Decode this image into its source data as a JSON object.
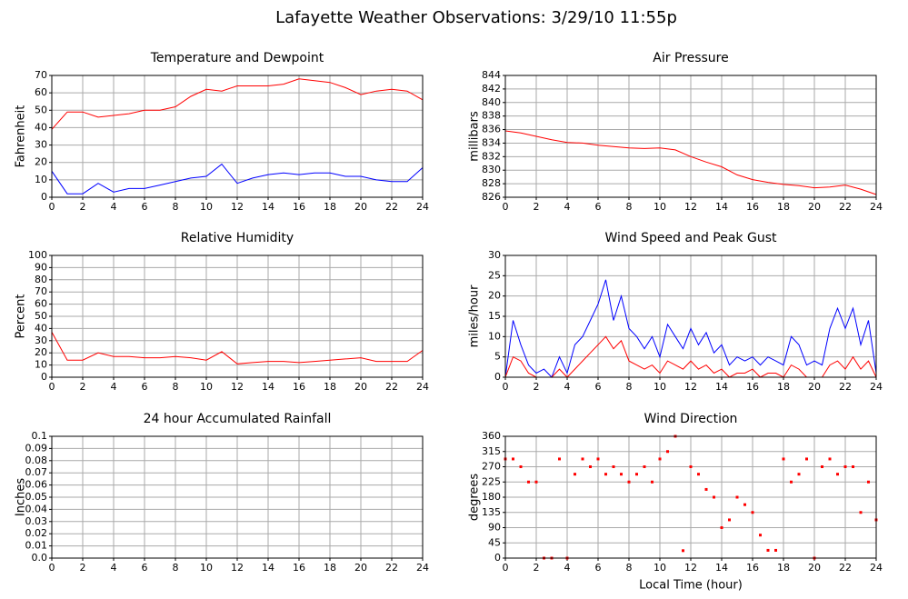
{
  "title": "Lafayette Weather Observations: 3/29/10 11:55p",
  "chart_data": [
    {
      "type": "line",
      "title": "Temperature and Dewpoint",
      "ylabel": "Fahrenheit",
      "x": [
        0,
        1,
        2,
        3,
        4,
        5,
        6,
        7,
        8,
        9,
        10,
        11,
        12,
        13,
        14,
        15,
        16,
        17,
        18,
        19,
        20,
        21,
        22,
        23,
        24
      ],
      "series": [
        {
          "color": "#ff0000",
          "values": [
            39,
            49,
            49,
            46,
            47,
            48,
            50,
            50,
            52,
            58,
            62,
            61,
            64,
            64,
            64,
            65,
            68,
            67,
            66,
            63,
            59,
            61,
            62,
            61,
            56
          ]
        },
        {
          "color": "#0000ff",
          "values": [
            15,
            2,
            2,
            8,
            3,
            5,
            5,
            7,
            9,
            11,
            12,
            19,
            8,
            11,
            13,
            14,
            13,
            14,
            14,
            12,
            12,
            10,
            9,
            9,
            17
          ]
        }
      ],
      "xlim": [
        0,
        24
      ],
      "xticks": [
        0,
        2,
        4,
        6,
        8,
        10,
        12,
        14,
        16,
        18,
        20,
        22,
        24
      ],
      "ylim": [
        0,
        70
      ],
      "yticks": [
        0,
        10,
        20,
        30,
        40,
        50,
        60,
        70
      ],
      "grid": true
    },
    {
      "type": "line",
      "title": "Air Pressure",
      "ylabel": "millibars",
      "x": [
        0,
        1,
        2,
        3,
        4,
        5,
        6,
        7,
        8,
        9,
        10,
        11,
        12,
        13,
        14,
        15,
        16,
        17,
        18,
        19,
        20,
        21,
        22,
        23,
        24
      ],
      "series": [
        {
          "color": "#ff0000",
          "values": [
            835.8,
            835.5,
            835,
            834.5,
            834.1,
            834,
            833.7,
            833.5,
            833.3,
            833.2,
            833.3,
            833,
            832,
            831.2,
            830.5,
            829.3,
            828.6,
            828.2,
            827.9,
            827.7,
            827.4,
            827.5,
            827.8,
            827.2,
            826.4
          ]
        }
      ],
      "xlim": [
        0,
        24
      ],
      "xticks": [
        0,
        2,
        4,
        6,
        8,
        10,
        12,
        14,
        16,
        18,
        20,
        22,
        24
      ],
      "ylim": [
        826,
        844
      ],
      "yticks": [
        826,
        828,
        830,
        832,
        834,
        836,
        838,
        840,
        842,
        844
      ],
      "grid": true
    },
    {
      "type": "line",
      "title": "Relative Humidity",
      "ylabel": "Percent",
      "x": [
        0,
        1,
        2,
        3,
        4,
        5,
        6,
        7,
        8,
        9,
        10,
        11,
        12,
        13,
        14,
        15,
        16,
        17,
        18,
        19,
        20,
        21,
        22,
        23,
        24
      ],
      "series": [
        {
          "color": "#ff0000",
          "values": [
            37,
            14,
            14,
            20,
            17,
            17,
            16,
            16,
            17,
            16,
            14,
            21,
            11,
            12,
            13,
            13,
            12,
            13,
            14,
            15,
            16,
            13,
            13,
            13,
            22
          ]
        }
      ],
      "xlim": [
        0,
        24
      ],
      "xticks": [
        0,
        2,
        4,
        6,
        8,
        10,
        12,
        14,
        16,
        18,
        20,
        22,
        24
      ],
      "ylim": [
        0,
        100
      ],
      "yticks": [
        0,
        10,
        20,
        30,
        40,
        50,
        60,
        70,
        80,
        90,
        100
      ],
      "grid": true
    },
    {
      "type": "line",
      "title": "Wind Speed and Peak Gust",
      "ylabel": "miles/hour",
      "x": [
        0,
        0.5,
        1,
        1.5,
        2,
        2.5,
        3,
        3.5,
        4,
        4.5,
        5,
        5.5,
        6,
        6.5,
        7,
        7.5,
        8,
        8.5,
        9,
        9.5,
        10,
        10.5,
        11,
        11.5,
        12,
        12.5,
        13,
        13.5,
        14,
        14.5,
        15,
        15.5,
        16,
        16.5,
        17,
        17.5,
        18,
        18.5,
        19,
        19.5,
        20,
        20.5,
        21,
        21.5,
        22,
        22.5,
        23,
        23.5,
        24
      ],
      "series": [
        {
          "color": "#0000ff",
          "values": [
            0,
            14,
            8,
            3,
            1,
            2,
            0,
            5,
            1,
            8,
            10,
            14,
            18,
            24,
            14,
            20,
            12,
            10,
            7,
            10,
            5,
            13,
            10,
            7,
            12,
            8,
            11,
            6,
            8,
            3,
            5,
            4,
            5,
            3,
            5,
            4,
            3,
            10,
            8,
            3,
            4,
            3,
            12,
            17,
            12,
            17,
            8,
            14,
            1
          ]
        },
        {
          "color": "#ff0000",
          "values": [
            0,
            5,
            4,
            1,
            0,
            0,
            0,
            2,
            0,
            2,
            4,
            6,
            8,
            10,
            7,
            9,
            4,
            3,
            2,
            3,
            1,
            4,
            3,
            2,
            4,
            2,
            3,
            1,
            2,
            0,
            1,
            1,
            2,
            0,
            1,
            1,
            0,
            3,
            2,
            0,
            0,
            0,
            3,
            4,
            2,
            5,
            2,
            4,
            0
          ]
        }
      ],
      "xlim": [
        0,
        24
      ],
      "xticks": [
        0,
        2,
        4,
        6,
        8,
        10,
        12,
        14,
        16,
        18,
        20,
        22,
        24
      ],
      "ylim": [
        0,
        30
      ],
      "yticks": [
        0,
        5,
        10,
        15,
        20,
        25,
        30
      ],
      "grid": true
    },
    {
      "type": "line",
      "title": "24 hour Accumulated Rainfall",
      "ylabel": "Inches",
      "x": [
        0,
        24
      ],
      "series": [
        {
          "color": "#ff0000",
          "values": [
            0,
            0
          ]
        }
      ],
      "xlim": [
        0,
        24
      ],
      "xticks": [
        0,
        2,
        4,
        6,
        8,
        10,
        12,
        14,
        16,
        18,
        20,
        22,
        24
      ],
      "ylim": [
        0,
        0.1
      ],
      "yticks": [
        {
          "value": 0,
          "label": "0.0"
        },
        0.01,
        0.02,
        0.03,
        0.04,
        0.05,
        0.06,
        0.07,
        0.08,
        0.09,
        0.1
      ],
      "grid": true
    },
    {
      "type": "scatter",
      "title": "Wind Direction",
      "ylabel": "degrees",
      "xlabel": "Local Time (hour)",
      "x": [
        0,
        0.5,
        1,
        1.5,
        2,
        2.5,
        3,
        3.5,
        4,
        4.5,
        5,
        5.5,
        6,
        6.5,
        7,
        7.5,
        8,
        8.5,
        9,
        9.5,
        10,
        10.5,
        11,
        11.5,
        12,
        12.5,
        13,
        13.5,
        14,
        14.5,
        15,
        15.5,
        16,
        16.5,
        17,
        17.5,
        18,
        18.5,
        19,
        19.5,
        20,
        20.5,
        21,
        21.5,
        22,
        22.5,
        23,
        23.5,
        24
      ],
      "series": [
        {
          "color": "#ff0000",
          "values": [
            293,
            293,
            270,
            225,
            225,
            0,
            0,
            293,
            0,
            248,
            293,
            270,
            293,
            248,
            270,
            248,
            225,
            248,
            270,
            225,
            293,
            315,
            360,
            22,
            270,
            248,
            203,
            180,
            90,
            113,
            180,
            158,
            135,
            68,
            23,
            23,
            293,
            225,
            248,
            293,
            0,
            270,
            293,
            248,
            270,
            270,
            135,
            225,
            113
          ]
        }
      ],
      "xlim": [
        0,
        24
      ],
      "xticks": [
        0,
        2,
        4,
        6,
        8,
        10,
        12,
        14,
        16,
        18,
        20,
        22,
        24
      ],
      "ylim": [
        0,
        360
      ],
      "yticks": [
        0,
        45,
        90,
        135,
        180,
        225,
        270,
        315,
        360
      ],
      "grid": true
    }
  ]
}
